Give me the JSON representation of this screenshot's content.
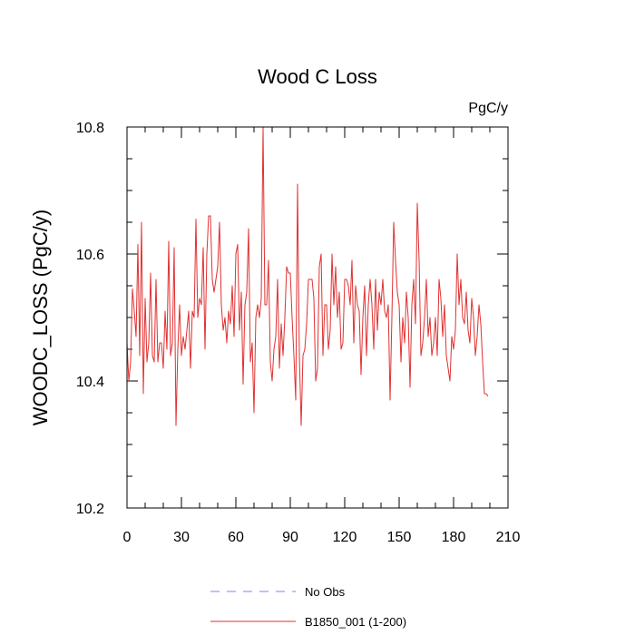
{
  "chart_data": {
    "type": "line",
    "title": "Wood C Loss",
    "units_label": "PgC/y",
    "xlabel": "",
    "ylabel": "WOODC_LOSS  (PgC/y)",
    "xlim": [
      0,
      210
    ],
    "ylim": [
      10.2,
      10.8
    ],
    "x_ticks": [
      0,
      30,
      60,
      90,
      120,
      150,
      180,
      210
    ],
    "x_tick_labels": [
      "0",
      "30",
      "60",
      "90",
      "120",
      "150",
      "180",
      "210"
    ],
    "y_ticks": [
      10.2,
      10.4,
      10.6,
      10.8
    ],
    "y_tick_labels": [
      "10.2",
      "10.4",
      "10.6",
      "10.8"
    ],
    "grid": false,
    "legend": [
      {
        "name": "No Obs",
        "color": "#8080ff",
        "style": "dashed"
      },
      {
        "name": "B1850_001 (1-200)",
        "color": "#e03030",
        "style": "solid"
      }
    ],
    "series": [
      {
        "name": "B1850_001 (1-200)",
        "color": "#e03030",
        "x_start": 0,
        "x_step": 1,
        "values": [
          10.46,
          10.4,
          10.43,
          10.545,
          10.51,
          10.47,
          10.615,
          10.44,
          10.65,
          10.38,
          10.53,
          10.43,
          10.46,
          10.57,
          10.44,
          10.43,
          10.56,
          10.43,
          10.46,
          10.46,
          10.42,
          10.51,
          10.45,
          10.62,
          10.44,
          10.46,
          10.61,
          10.33,
          10.45,
          10.52,
          10.44,
          10.47,
          10.45,
          10.48,
          10.51,
          10.42,
          10.51,
          10.5,
          10.655,
          10.5,
          10.53,
          10.52,
          10.61,
          10.45,
          10.6,
          10.66,
          10.66,
          10.56,
          10.54,
          10.56,
          10.58,
          10.65,
          10.52,
          10.48,
          10.5,
          10.46,
          10.51,
          10.49,
          10.55,
          10.47,
          10.6,
          10.615,
          10.48,
          10.54,
          10.395,
          10.52,
          10.54,
          10.64,
          10.43,
          10.46,
          10.35,
          10.5,
          10.52,
          10.5,
          10.53,
          10.8,
          10.52,
          10.52,
          10.59,
          10.43,
          10.4,
          10.45,
          10.47,
          10.56,
          10.42,
          10.49,
          10.44,
          10.5,
          10.58,
          10.57,
          10.57,
          10.5,
          10.44,
          10.37,
          10.71,
          10.44,
          10.33,
          10.44,
          10.45,
          10.49,
          10.56,
          10.56,
          10.56,
          10.53,
          10.4,
          10.42,
          10.58,
          10.6,
          10.44,
          10.52,
          10.52,
          10.45,
          10.48,
          10.6,
          10.52,
          10.58,
          10.5,
          10.54,
          10.45,
          10.46,
          10.56,
          10.56,
          10.55,
          10.52,
          10.59,
          10.46,
          10.55,
          10.52,
          10.51,
          10.41,
          10.5,
          10.55,
          10.44,
          10.52,
          10.56,
          10.52,
          10.45,
          10.56,
          10.48,
          10.54,
          10.52,
          10.56,
          10.51,
          10.5,
          10.52,
          10.37,
          10.5,
          10.65,
          10.59,
          10.54,
          10.52,
          10.43,
          10.5,
          10.46,
          10.54,
          10.5,
          10.39,
          10.52,
          10.56,
          10.49,
          10.68,
          10.59,
          10.44,
          10.46,
          10.5,
          10.56,
          10.47,
          10.5,
          10.44,
          10.46,
          10.5,
          10.44,
          10.56,
          10.53,
          10.47,
          10.52,
          10.44,
          10.42,
          10.4,
          10.47,
          10.45,
          10.48,
          10.6,
          10.52,
          10.56,
          10.5,
          10.49,
          10.54,
          10.48,
          10.46,
          10.53,
          10.5,
          10.44,
          10.47,
          10.52,
          10.49,
          10.43,
          10.38,
          10.38,
          10.376
        ]
      }
    ]
  }
}
